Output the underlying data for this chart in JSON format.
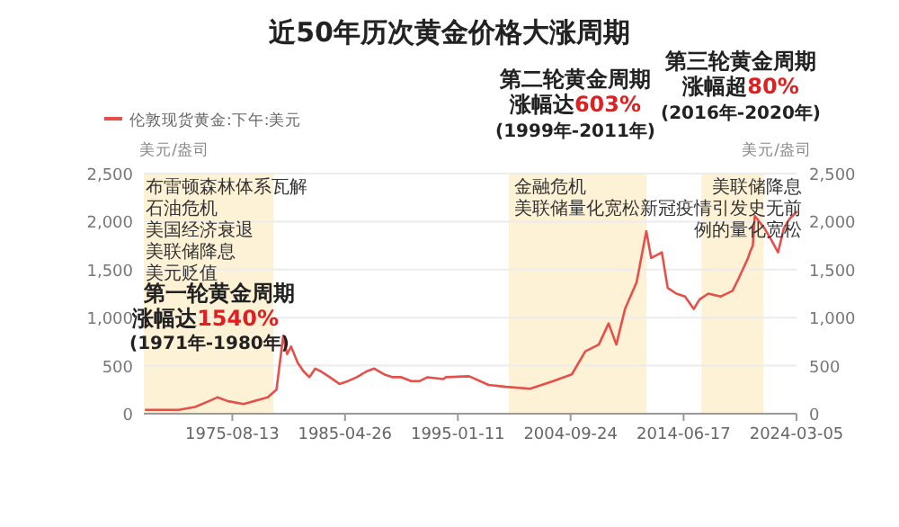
{
  "chart_data": {
    "type": "line",
    "title": "近50年历次黄金价格大涨周期",
    "ylabel": "美元/盎司",
    "y2label": "美元/盎司",
    "x": [
      "1968-03",
      "1971-01",
      "1972-06",
      "1973-08",
      "1974-05",
      "1975-04",
      "1976-08",
      "1978-09",
      "1979-06",
      "1980-01",
      "1980-05",
      "1980-09",
      "1981-04",
      "1981-10",
      "1982-04",
      "1982-10",
      "1983-04",
      "1984-01",
      "1984-11",
      "1985-08",
      "1986-05",
      "1987-03",
      "1987-11",
      "1988-09",
      "1989-06",
      "1990-03",
      "1991-01",
      "1991-10",
      "1992-06",
      "1993-10",
      "1994-01",
      "1996-01",
      "1997-09",
      "1999-03",
      "2001-04",
      "2003-04",
      "2004-11",
      "2006-01",
      "2007-03",
      "2008-01",
      "2008-09",
      "2009-06",
      "2010-06",
      "2011-04",
      "2011-09",
      "2012-08",
      "2013-02",
      "2013-11",
      "2014-08",
      "2015-05",
      "2015-11",
      "2016-08",
      "2017-09",
      "2018-09",
      "2019-03",
      "2020-01",
      "2020-03",
      "2020-06",
      "2020-08",
      "2021-06",
      "2022-01",
      "2022-08",
      "2023-02",
      "2023-08",
      "2024-03-05"
    ],
    "series": [
      {
        "name": "伦敦现货黄金:下午:美元",
        "color": "#e5504a",
        "values": [
          40,
          40,
          70,
          130,
          170,
          130,
          100,
          170,
          250,
          810,
          620,
          700,
          530,
          440,
          380,
          470,
          440,
          380,
          310,
          340,
          380,
          440,
          470,
          410,
          380,
          380,
          340,
          340,
          380,
          360,
          380,
          390,
          300,
          280,
          260,
          340,
          410,
          650,
          720,
          940,
          720,
          1090,
          1370,
          1900,
          1620,
          1680,
          1310,
          1250,
          1220,
          1090,
          1190,
          1250,
          1220,
          1280,
          1400,
          1620,
          1680,
          1750,
          2060,
          1930,
          1810,
          1680,
          1930,
          2030,
          2100
        ]
      }
    ],
    "xlim": [
      "1968-01",
      "2024-03-05"
    ],
    "xticks": [
      "1975-08-13",
      "1985-04-26",
      "1995-01-11",
      "2004-09-24",
      "2014-06-17",
      "2024-03-05"
    ],
    "ylim": [
      0,
      2500
    ],
    "yticks": [
      0,
      500,
      {
        "value": 1000,
        "label": "1,000"
      },
      {
        "value": 1500,
        "label": "1,500"
      },
      {
        "value": 2000,
        "label": "2,000"
      },
      {
        "value": 2500,
        "label": "2,500"
      }
    ],
    "y2lim": [
      0,
      2500
    ],
    "y2ticks": [
      0,
      500,
      {
        "value": 1000,
        "label": "1,000"
      },
      {
        "value": 1500,
        "label": "1,500"
      },
      {
        "value": 2000,
        "label": "2,000"
      },
      {
        "value": 2500,
        "label": "2,500"
      }
    ],
    "grid": "y",
    "legend": "top left",
    "marker": "none",
    "line_style": "solid",
    "bands": [
      {
        "axis": "x",
        "from": "1968-01",
        "to": "1979-03",
        "color": "#fdf1d6"
      },
      {
        "axis": "x",
        "from": "1999-06",
        "to": "2011-04",
        "color": "#fdf1d6"
      },
      {
        "axis": "x",
        "from": "2016-01",
        "to": "2021-05",
        "color": "#fdf1d6"
      }
    ],
    "annotations": [
      "第一轮黄金周期",
      "涨幅达1540%",
      "(1971年-1980年)",
      "第二轮黄金周期",
      "涨幅达603%",
      "(1999年-2011年)",
      "第三轮黄金周期",
      "涨幅超80%",
      "(2016年-2020年)",
      "布雷顿森林体系瓦解",
      "石油危机",
      "美国经济衰退",
      "美联储降息",
      "美元贬值",
      "金融危机",
      "美联储量化宽松",
      "美联储降息",
      "新冠疫情引发史无前",
      "例的量化宽松"
    ]
  }
}
